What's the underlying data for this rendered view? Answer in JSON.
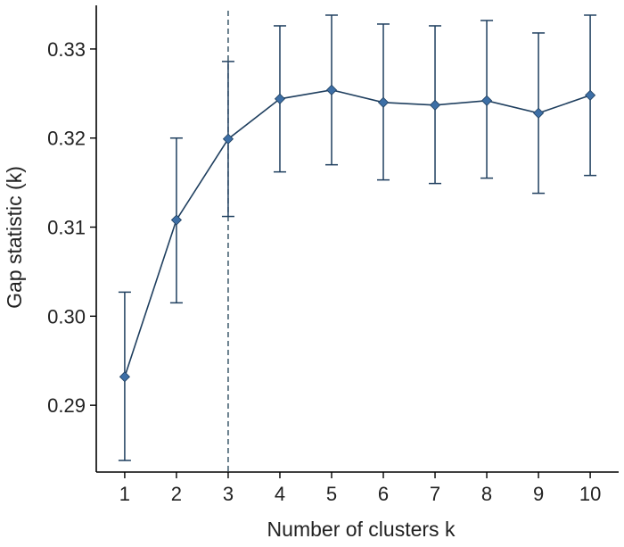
{
  "chart_data": {
    "type": "line",
    "title": "",
    "xlabel": "Number of clusters k",
    "ylabel": "Gap statistic (k)",
    "x": [
      1,
      2,
      3,
      4,
      5,
      6,
      7,
      8,
      9,
      10
    ],
    "xtick_labels": [
      "1",
      "2",
      "3",
      "4",
      "5",
      "6",
      "7",
      "8",
      "9",
      "10"
    ],
    "ytick_values": [
      0.29,
      0.3,
      0.31,
      0.32,
      0.33
    ],
    "ytick_labels": [
      "0.29",
      "0.30",
      "0.31",
      "0.32",
      "0.33"
    ],
    "xlim": [
      0.45,
      10.55
    ],
    "ylim": [
      0.2825,
      0.3349
    ],
    "series": [
      {
        "values": [
          0.2932,
          0.3108,
          0.3199,
          0.3244,
          0.3254,
          0.324,
          0.3237,
          0.3242,
          0.3228,
          0.3248
        ],
        "error_low": [
          0.2838,
          0.3015,
          0.3112,
          0.3162,
          0.317,
          0.3153,
          0.3149,
          0.3155,
          0.3138,
          0.3158
        ],
        "error_high": [
          0.3027,
          0.32,
          0.3286,
          0.3326,
          0.3338,
          0.3328,
          0.3326,
          0.3332,
          0.3318,
          0.3338
        ]
      }
    ],
    "reference_line": {
      "x": 3,
      "style": "dashed"
    },
    "grid": false,
    "legend": "none",
    "colors": {
      "line": "#1f3f5f",
      "marker": "#3d6fa6",
      "axis": "#000000",
      "reference": "#2b4a5f"
    }
  }
}
